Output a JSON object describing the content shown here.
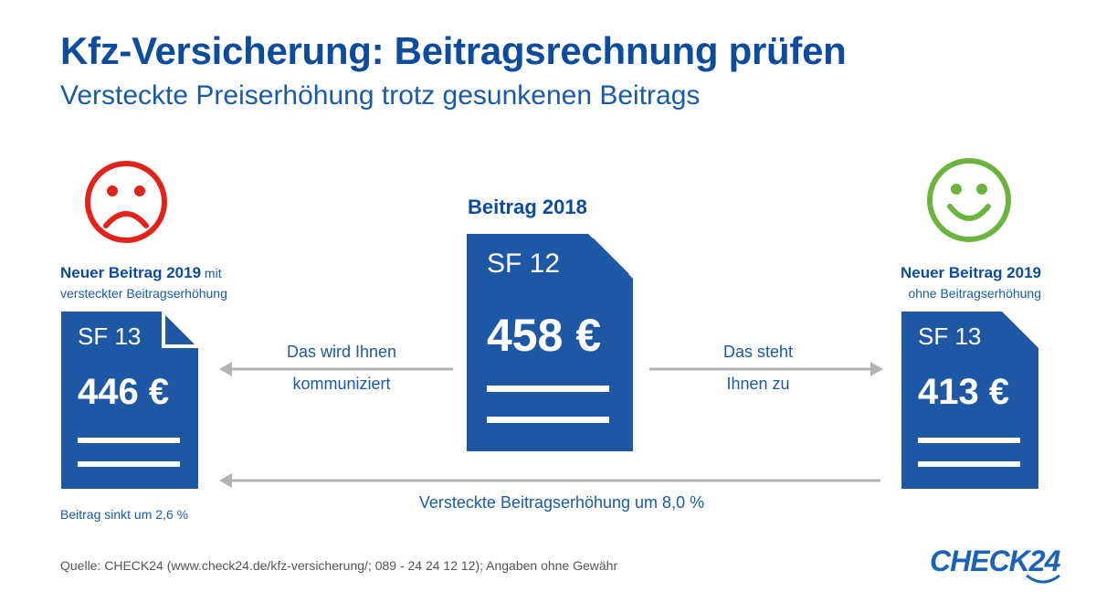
{
  "title": "Kfz-Versicherung: Beitragsrechnung prüfen",
  "subtitle": "Versteckte Preiserhöhung trotz gesunkenen Beitrags",
  "center": {
    "heading": "Beitrag 2018",
    "sf": "SF 12",
    "price": "458 €"
  },
  "left": {
    "heading_bold": "Neuer Beitrag 2019",
    "heading_rest": " mit",
    "subline": "versteckter Beitragserhöhung",
    "sf": "SF 13",
    "price": "446 €",
    "footnote": "Beitrag sinkt um 2,6 %",
    "face_color": "#e32219"
  },
  "right": {
    "heading_bold": "Neuer Beitrag 2019",
    "subline": "ohne Beitragserhöhung",
    "sf": "SF 13",
    "price": "413 €",
    "face_color": "#6db33f"
  },
  "arrows": {
    "left_line1": "Das wird Ihnen",
    "left_line2": "kommuniziert",
    "right_line1": "Das steht",
    "right_line2": "Ihnen zu",
    "bottom": "Versteckte Beitragserhöhung um 8,0 %"
  },
  "source": "Quelle: CHECK24 (www.check24.de/kfz-versicherung/; 089 - 24 24 12 12); Angaben ohne Gewähr",
  "logo": "CHECK24",
  "colors": {
    "doc_blue": "#1e57a4",
    "arrow_gray": "#b3b3b3"
  }
}
